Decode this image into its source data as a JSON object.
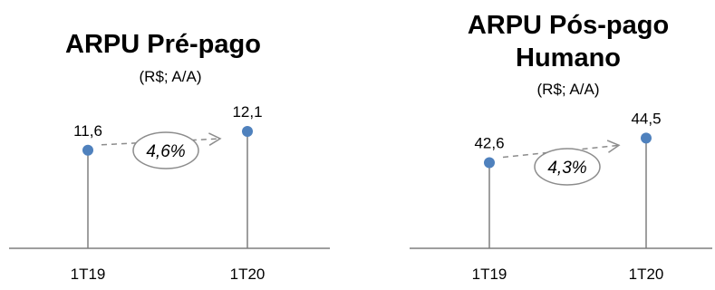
{
  "chart_data": [
    {
      "type": "lollipop",
      "title": "ARPU Pré-pago",
      "subtitle": "(R$; A/A)",
      "categories": [
        "1T19",
        "1T20"
      ],
      "values": [
        11.6,
        12.1
      ],
      "value_labels": [
        "11,6",
        "12,1"
      ],
      "growth_label": "4,6%",
      "ylim": [
        9.0,
        12.7
      ],
      "grid": false,
      "marker_color": "#4f81bd",
      "stem_color": "#7f7f7f"
    },
    {
      "type": "lollipop",
      "title_lines": [
        "ARPU Pós-pago",
        "Humano"
      ],
      "subtitle": "(R$; A/A)",
      "categories": [
        "1T19",
        "1T20"
      ],
      "values": [
        42.6,
        44.5
      ],
      "value_labels": [
        "42,6",
        "44,5"
      ],
      "growth_label": "4,3%",
      "ylim": [
        36.0,
        46.2
      ],
      "grid": false,
      "marker_color": "#4f81bd",
      "stem_color": "#7f7f7f"
    }
  ]
}
